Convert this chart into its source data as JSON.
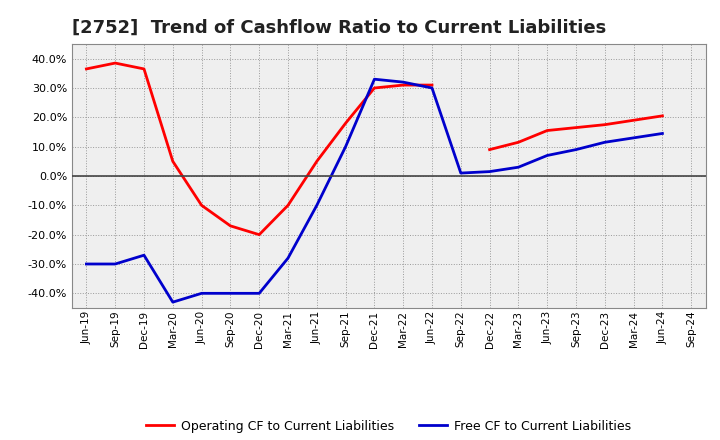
{
  "title": "[2752]  Trend of Cashflow Ratio to Current Liabilities",
  "x_labels": [
    "Jun-19",
    "Sep-19",
    "Dec-19",
    "Mar-20",
    "Jun-20",
    "Sep-20",
    "Dec-20",
    "Mar-21",
    "Jun-21",
    "Sep-21",
    "Dec-21",
    "Mar-22",
    "Jun-22",
    "Sep-22",
    "Dec-22",
    "Mar-23",
    "Jun-23",
    "Sep-23",
    "Dec-23",
    "Mar-24",
    "Jun-24",
    "Sep-24"
  ],
  "operating_cf": [
    36.5,
    38.5,
    36.5,
    5.0,
    -10.0,
    -17.0,
    -20.0,
    -10.0,
    5.0,
    18.0,
    30.0,
    31.0,
    31.0,
    null,
    9.0,
    11.5,
    15.5,
    16.5,
    17.5,
    19.0,
    20.5,
    null
  ],
  "free_cf": [
    -30.0,
    -30.0,
    -27.0,
    -43.0,
    -40.0,
    -40.0,
    -40.0,
    -28.0,
    -10.0,
    10.0,
    33.0,
    32.0,
    30.0,
    1.0,
    1.5,
    3.0,
    7.0,
    9.0,
    11.5,
    13.0,
    14.5,
    null
  ],
  "ylim": [
    -45,
    45
  ],
  "yticks": [
    -40.0,
    -30.0,
    -20.0,
    -10.0,
    0.0,
    10.0,
    20.0,
    30.0,
    40.0
  ],
  "operating_color": "#FF0000",
  "free_color": "#0000CC",
  "grid_color": "#999999",
  "background_color": "#FFFFFF",
  "plot_bg_color": "#EFEFEF",
  "legend_operating": "Operating CF to Current Liabilities",
  "legend_free": "Free CF to Current Liabilities",
  "title_fontsize": 13,
  "linewidth": 2.0
}
